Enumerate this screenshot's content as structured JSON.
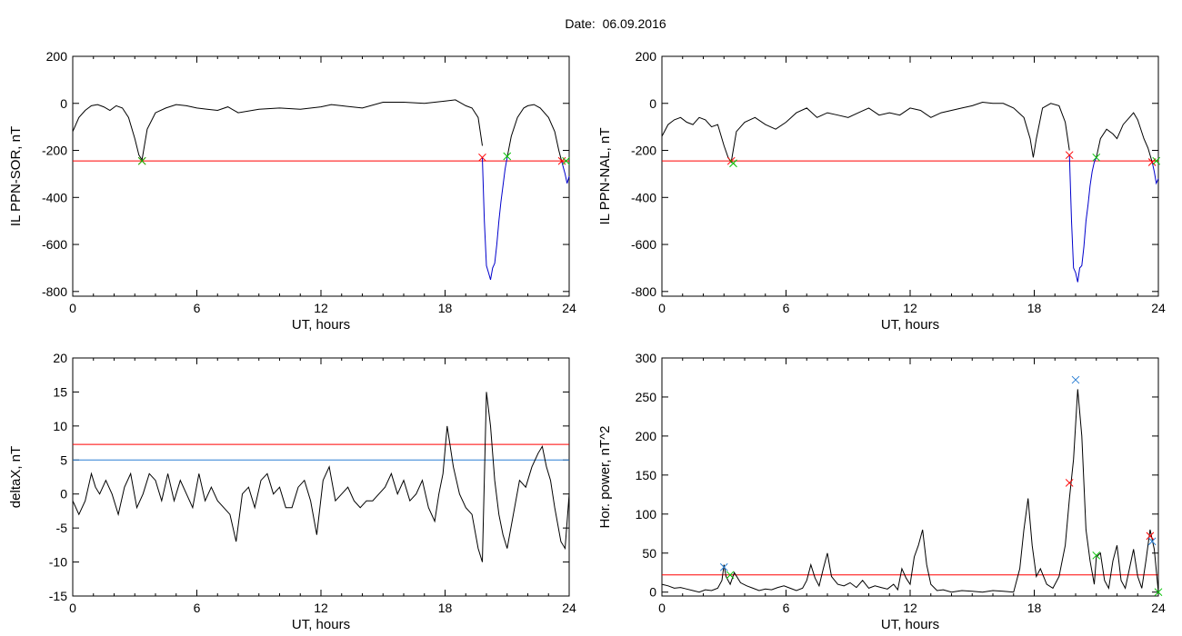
{
  "page": {
    "title": "Date:  06.09.2016"
  },
  "colors": {
    "black": "#000000",
    "red": "#ff0000",
    "blue": "#0000cc",
    "lightblue": "#2a7fd4",
    "green": "#00c000"
  },
  "chart_data": [
    {
      "type": "line",
      "ylabel": "IL PPN-SOR, nT",
      "xlabel": "UT, hours",
      "xlim": [
        0,
        24
      ],
      "ylim": [
        -820,
        200
      ],
      "xticks": [
        0,
        6,
        12,
        18,
        24
      ],
      "yticks": [
        -800,
        -600,
        -400,
        -200,
        0,
        200
      ],
      "grid": false,
      "series": [
        {
          "color": "#000000",
          "x": [
            0,
            0.3,
            0.6,
            0.9,
            1.2,
            1.5,
            1.8,
            2.1,
            2.4,
            2.7,
            3.0,
            3.2,
            3.35,
            3.6,
            4.0,
            4.5,
            5.0,
            5.5,
            6.0,
            6.5,
            7.0,
            7.5,
            8.0,
            9.0,
            10.0,
            11.0,
            12.0,
            12.5,
            13.0,
            14.0,
            15.0,
            16.0,
            17.0,
            17.5,
            18.0,
            18.5,
            19.0,
            19.3,
            19.6,
            19.8
          ],
          "y": [
            -120,
            -60,
            -30,
            -10,
            -5,
            -15,
            -30,
            -10,
            -20,
            -60,
            -150,
            -220,
            -240,
            -110,
            -40,
            -20,
            -5,
            -10,
            -20,
            -25,
            -30,
            -15,
            -40,
            -25,
            -20,
            -25,
            -15,
            -5,
            -10,
            -20,
            5,
            5,
            0,
            5,
            10,
            15,
            -10,
            -20,
            -60,
            -180
          ]
        },
        {
          "color": "#0000cc",
          "x": [
            19.8,
            19.9,
            20.0,
            20.1,
            20.2,
            20.3,
            20.4,
            20.5,
            20.6,
            20.7,
            20.8,
            20.9,
            21.0
          ],
          "y": [
            -230,
            -500,
            -690,
            -720,
            -750,
            -700,
            -680,
            -600,
            -500,
            -420,
            -350,
            -280,
            -230
          ]
        },
        {
          "color": "#000000",
          "x": [
            21.0,
            21.2,
            21.5,
            21.8,
            22.0,
            22.3,
            22.6,
            23.0,
            23.3,
            23.5,
            23.65
          ],
          "y": [
            -230,
            -140,
            -60,
            -20,
            -10,
            -5,
            -20,
            -60,
            -120,
            -200,
            -250
          ]
        },
        {
          "color": "#0000cc",
          "x": [
            23.65,
            23.8,
            23.9,
            24.0
          ],
          "y": [
            -250,
            -300,
            -340,
            -310
          ]
        }
      ],
      "hlines": [
        {
          "y": -245,
          "color": "#ff0000"
        }
      ],
      "markers": [
        {
          "x": 3.35,
          "y": -245,
          "color": "#ff0000"
        },
        {
          "x": 3.35,
          "y": -245,
          "color": "#00c000"
        },
        {
          "x": 19.8,
          "y": -230,
          "color": "#ff0000"
        },
        {
          "x": 21.0,
          "y": -225,
          "color": "#00c000"
        },
        {
          "x": 23.65,
          "y": -245,
          "color": "#ff0000"
        },
        {
          "x": 23.85,
          "y": -245,
          "color": "#00c000"
        }
      ]
    },
    {
      "type": "line",
      "ylabel": "IL PPN-NAL, nT",
      "xlabel": "UT, hours",
      "xlim": [
        0,
        24
      ],
      "ylim": [
        -820,
        200
      ],
      "xticks": [
        0,
        6,
        12,
        18,
        24
      ],
      "yticks": [
        -800,
        -600,
        -400,
        -200,
        0,
        200
      ],
      "grid": false,
      "series": [
        {
          "color": "#000000",
          "x": [
            0,
            0.3,
            0.6,
            0.9,
            1.2,
            1.5,
            1.8,
            2.1,
            2.4,
            2.7,
            3.0,
            3.2,
            3.35,
            3.6,
            4.0,
            4.5,
            5.0,
            5.5,
            6.0,
            6.5,
            7.0,
            7.5,
            8.0,
            8.5,
            9.0,
            9.5,
            10.0,
            10.5,
            11.0,
            11.5,
            12.0,
            12.5,
            13.0,
            13.5,
            14.0,
            14.5,
            15.0,
            15.5,
            16.0,
            16.5,
            17.0,
            17.5,
            17.8,
            17.95,
            18.1,
            18.4,
            18.8,
            19.2,
            19.5,
            19.7
          ],
          "y": [
            -140,
            -90,
            -70,
            -60,
            -80,
            -90,
            -60,
            -70,
            -100,
            -90,
            -180,
            -230,
            -250,
            -120,
            -80,
            -60,
            -90,
            -110,
            -80,
            -40,
            -20,
            -60,
            -40,
            -50,
            -60,
            -40,
            -20,
            -50,
            -40,
            -50,
            -20,
            -30,
            -60,
            -40,
            -30,
            -20,
            -10,
            5,
            0,
            0,
            -20,
            -60,
            -150,
            -230,
            -150,
            -20,
            0,
            -10,
            -80,
            -200
          ]
        },
        {
          "color": "#0000cc",
          "x": [
            19.7,
            19.8,
            19.9,
            20.0,
            20.1,
            20.2,
            20.3,
            20.4,
            20.5,
            20.6,
            20.7,
            20.8,
            20.9,
            21.0
          ],
          "y": [
            -220,
            -500,
            -700,
            -720,
            -760,
            -700,
            -690,
            -610,
            -500,
            -430,
            -350,
            -290,
            -250,
            -230
          ]
        },
        {
          "color": "#000000",
          "x": [
            21.0,
            21.2,
            21.5,
            21.8,
            22.0,
            22.3,
            22.6,
            22.8,
            23.0,
            23.3,
            23.5,
            23.7
          ],
          "y": [
            -230,
            -150,
            -110,
            -130,
            -150,
            -90,
            -60,
            -40,
            -70,
            -150,
            -190,
            -250
          ]
        },
        {
          "color": "#0000cc",
          "x": [
            23.7,
            23.8,
            23.9,
            24.0
          ],
          "y": [
            -250,
            -290,
            -340,
            -320
          ]
        }
      ],
      "hlines": [
        {
          "y": -245,
          "color": "#ff0000"
        }
      ],
      "markers": [
        {
          "x": 3.35,
          "y": -245,
          "color": "#ff0000"
        },
        {
          "x": 3.45,
          "y": -255,
          "color": "#00c000"
        },
        {
          "x": 19.7,
          "y": -220,
          "color": "#ff0000"
        },
        {
          "x": 21.0,
          "y": -230,
          "color": "#00c000"
        },
        {
          "x": 23.7,
          "y": -250,
          "color": "#ff0000"
        },
        {
          "x": 23.9,
          "y": -245,
          "color": "#00c000"
        }
      ]
    },
    {
      "type": "line",
      "ylabel": "deltaX, nT",
      "xlabel": "UT, hours",
      "xlim": [
        0,
        24
      ],
      "ylim": [
        -15,
        20
      ],
      "xticks": [
        0,
        6,
        12,
        18,
        24
      ],
      "yticks": [
        -15,
        -10,
        -5,
        0,
        5,
        10,
        15,
        20
      ],
      "grid": false,
      "series": [
        {
          "color": "#000000",
          "x": [
            0,
            0.3,
            0.6,
            0.9,
            1.1,
            1.3,
            1.6,
            1.9,
            2.2,
            2.5,
            2.8,
            3.1,
            3.4,
            3.7,
            4.0,
            4.3,
            4.6,
            4.9,
            5.2,
            5.5,
            5.8,
            6.1,
            6.4,
            6.7,
            7.0,
            7.3,
            7.6,
            7.9,
            8.2,
            8.5,
            8.8,
            9.1,
            9.4,
            9.7,
            10.0,
            10.3,
            10.6,
            10.9,
            11.2,
            11.5,
            11.8,
            12.1,
            12.4,
            12.7,
            13.0,
            13.3,
            13.6,
            13.9,
            14.2,
            14.5,
            14.8,
            15.1,
            15.4,
            15.7,
            16.0,
            16.3,
            16.6,
            16.9,
            17.2,
            17.5,
            17.7,
            17.9,
            18.1,
            18.4,
            18.7,
            19.0,
            19.3,
            19.6,
            19.8,
            20.0,
            20.2,
            20.4,
            20.6,
            20.8,
            21.0,
            21.3,
            21.6,
            21.9,
            22.2,
            22.5,
            22.7,
            22.9,
            23.1,
            23.3,
            23.6,
            23.8,
            24.0
          ],
          "y": [
            -1,
            -3,
            -1,
            3,
            1,
            0,
            2,
            0,
            -3,
            1,
            3,
            -2,
            0,
            3,
            2,
            -1,
            3,
            -1,
            2,
            0,
            -2,
            3,
            -1,
            1,
            -1,
            -2,
            -3,
            -7,
            0,
            1,
            -2,
            2,
            3,
            0,
            1,
            -2,
            -2,
            1,
            2,
            -1,
            -6,
            2,
            4,
            -1,
            0,
            1,
            -1,
            -2,
            -1,
            -1,
            0,
            1,
            3,
            0,
            2,
            -1,
            0,
            2,
            -2,
            -4,
            0,
            3,
            10,
            4,
            0,
            -2,
            -3,
            -8,
            -10,
            15,
            10,
            2,
            -3,
            -6,
            -8,
            -3,
            2,
            1,
            4,
            6,
            7,
            4,
            2,
            -2,
            -7,
            -8,
            0
          ]
        }
      ],
      "hlines": [
        {
          "y": 7.3,
          "color": "#ff0000"
        },
        {
          "y": 5,
          "color": "#2a7fd4"
        }
      ],
      "markers": []
    },
    {
      "type": "line",
      "ylabel": "Hor. power, nT^2",
      "xlabel": "UT, hours",
      "xlim": [
        0,
        24
      ],
      "ylim": [
        -5,
        300
      ],
      "xticks": [
        0,
        6,
        12,
        18,
        24
      ],
      "yticks": [
        0,
        50,
        100,
        150,
        200,
        250,
        300
      ],
      "grid": false,
      "series": [
        {
          "color": "#000000",
          "x": [
            0,
            0.3,
            0.6,
            0.9,
            1.2,
            1.5,
            1.8,
            2.1,
            2.4,
            2.7,
            2.9,
            3.0,
            3.1,
            3.3,
            3.5,
            3.8,
            4.1,
            4.4,
            4.7,
            5.0,
            5.3,
            5.6,
            5.9,
            6.2,
            6.5,
            6.8,
            7.0,
            7.2,
            7.4,
            7.6,
            7.8,
            8.0,
            8.2,
            8.5,
            8.8,
            9.1,
            9.4,
            9.7,
            10.0,
            10.3,
            10.6,
            10.9,
            11.2,
            11.4,
            11.6,
            11.8,
            12.0,
            12.2,
            12.4,
            12.6,
            12.8,
            13.0,
            13.3,
            13.6,
            14.0,
            14.5,
            15.0,
            15.5,
            16.0,
            16.5,
            17.0,
            17.3,
            17.5,
            17.7,
            17.9,
            18.1,
            18.3,
            18.6,
            18.9,
            19.2,
            19.5,
            19.7,
            19.9,
            20.1,
            20.3,
            20.5,
            20.7,
            20.9,
            21.0,
            21.2,
            21.4,
            21.6,
            21.8,
            22.0,
            22.2,
            22.4,
            22.6,
            22.8,
            23.0,
            23.2,
            23.4,
            23.6,
            23.8,
            24.0
          ],
          "y": [
            10,
            8,
            5,
            6,
            4,
            2,
            0,
            3,
            2,
            5,
            15,
            35,
            20,
            10,
            25,
            12,
            8,
            5,
            2,
            4,
            3,
            6,
            8,
            5,
            2,
            5,
            15,
            35,
            18,
            8,
            30,
            50,
            20,
            10,
            8,
            12,
            6,
            15,
            5,
            8,
            6,
            4,
            10,
            3,
            30,
            18,
            10,
            45,
            60,
            80,
            35,
            10,
            2,
            3,
            0,
            2,
            1,
            0,
            2,
            1,
            0,
            30,
            80,
            120,
            60,
            20,
            30,
            10,
            5,
            20,
            60,
            120,
            170,
            260,
            200,
            80,
            40,
            10,
            45,
            50,
            15,
            5,
            40,
            60,
            15,
            5,
            30,
            55,
            20,
            5,
            40,
            80,
            55,
            0
          ]
        }
      ],
      "hlines": [
        {
          "y": 22,
          "color": "#ff0000"
        }
      ],
      "markers": [
        {
          "x": 3.0,
          "y": 32,
          "color": "#2a7fd4"
        },
        {
          "x": 3.3,
          "y": 22,
          "color": "#00c000"
        },
        {
          "x": 19.7,
          "y": 140,
          "color": "#ff0000"
        },
        {
          "x": 20.0,
          "y": 272,
          "color": "#2a7fd4"
        },
        {
          "x": 21.0,
          "y": 47,
          "color": "#00c000"
        },
        {
          "x": 23.6,
          "y": 72,
          "color": "#ff0000"
        },
        {
          "x": 23.7,
          "y": 65,
          "color": "#2a7fd4"
        },
        {
          "x": 24.0,
          "y": 0,
          "color": "#00c000"
        }
      ]
    }
  ]
}
